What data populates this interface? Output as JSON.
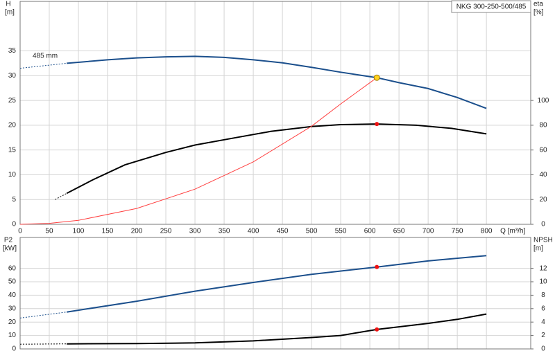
{
  "chart_data": [
    {
      "type": "line",
      "title": "NKG 300-250-500/485",
      "ylabel": "H",
      "yunit": "[m]",
      "y2label": "eta",
      "y2unit": "[%]",
      "xlabel": "Q [m³/h]",
      "annotation": "485 mm",
      "xlim": [
        0,
        876
      ],
      "xticks": [
        0,
        50,
        100,
        150,
        200,
        250,
        300,
        350,
        400,
        450,
        500,
        550,
        600,
        650,
        700,
        750,
        800
      ],
      "ylim": [
        0,
        45
      ],
      "yticks": [
        0,
        5,
        10,
        15,
        20,
        25,
        30,
        35
      ],
      "y2lim": [
        0,
        180
      ],
      "y2ticks": [
        0,
        20,
        40,
        60,
        80,
        100
      ],
      "grid": true,
      "show_xtick_labels": true,
      "series": [
        {
          "color": "#1b4f8c",
          "axis": "y",
          "linestyle": "dashed",
          "x": [
            0,
            80
          ],
          "values": [
            31.5,
            32.5
          ]
        },
        {
          "color": "#1b4f8c",
          "axis": "y",
          "linestyle": "solid",
          "x": [
            80,
            150,
            200,
            250,
            300,
            350,
            400,
            450,
            500,
            550,
            612,
            650,
            700,
            750,
            800
          ],
          "values": [
            32.5,
            33.2,
            33.6,
            33.8,
            33.9,
            33.7,
            33.2,
            32.6,
            31.7,
            30.7,
            29.6,
            28.6,
            27.4,
            25.6,
            23.4
          ]
        },
        {
          "color": "#000000",
          "axis": "y2",
          "linestyle": "dashed",
          "x": [
            60,
            80
          ],
          "values": [
            20,
            25
          ]
        },
        {
          "color": "#000000",
          "axis": "y2",
          "linestyle": "solid",
          "x": [
            80,
            125,
            180,
            250,
            300,
            370,
            430,
            500,
            550,
            612,
            680,
            740,
            800
          ],
          "values": [
            25,
            36,
            48,
            58,
            64,
            70,
            75,
            79,
            80.5,
            81,
            80,
            77.5,
            73
          ]
        },
        {
          "color": "#ff4040",
          "axis": "y",
          "linestyle": "thin",
          "x": [
            0,
            50,
            100,
            200,
            300,
            400,
            500,
            550,
            612
          ],
          "values": [
            0,
            0.2,
            0.8,
            3.2,
            7.1,
            12.6,
            19.8,
            24.3,
            29.6
          ]
        }
      ],
      "markers": [
        {
          "x": 612,
          "y": 29.6,
          "axis": "y",
          "color": "#ffd21f"
        },
        {
          "x": 612,
          "y": 81,
          "axis": "y2",
          "color": "#ee1111"
        }
      ]
    },
    {
      "type": "line",
      "ylabel": "P2",
      "yunit": "[kW]",
      "y2label": "NPSH",
      "y2unit": "[m]",
      "xlim": [
        0,
        876
      ],
      "xticks": [
        0,
        50,
        100,
        150,
        200,
        250,
        300,
        350,
        400,
        450,
        500,
        550,
        600,
        650,
        700,
        750,
        800
      ],
      "ylim": [
        0,
        83
      ],
      "yticks": [
        0,
        10,
        20,
        30,
        40,
        50,
        60
      ],
      "y2lim": [
        0,
        16.6
      ],
      "y2ticks": [
        0,
        2,
        4,
        6,
        8,
        10,
        12
      ],
      "grid": true,
      "show_xtick_labels": false,
      "series": [
        {
          "color": "#1b4f8c",
          "axis": "y",
          "linestyle": "dashed",
          "x": [
            0,
            80
          ],
          "values": [
            23,
            27.5
          ]
        },
        {
          "color": "#1b4f8c",
          "axis": "y",
          "linestyle": "solid",
          "x": [
            80,
            200,
            300,
            400,
            500,
            612,
            700,
            800
          ],
          "values": [
            27.5,
            35.5,
            43,
            49.5,
            55.5,
            61,
            65.5,
            69.5
          ]
        },
        {
          "color": "#000000",
          "axis": "y2",
          "linestyle": "dashed",
          "x": [
            0,
            80
          ],
          "values": [
            0.7,
            0.75
          ]
        },
        {
          "color": "#000000",
          "axis": "y2",
          "linestyle": "solid",
          "x": [
            80,
            200,
            300,
            400,
            500,
            550,
            612,
            700,
            750,
            800
          ],
          "values": [
            0.75,
            0.8,
            0.9,
            1.2,
            1.7,
            2.0,
            2.9,
            3.8,
            4.4,
            5.2
          ]
        }
      ],
      "markers": [
        {
          "x": 612,
          "y": 61,
          "axis": "y",
          "color": "#ee1111"
        },
        {
          "x": 612,
          "y": 2.9,
          "axis": "y2",
          "color": "#ee1111"
        }
      ]
    }
  ]
}
